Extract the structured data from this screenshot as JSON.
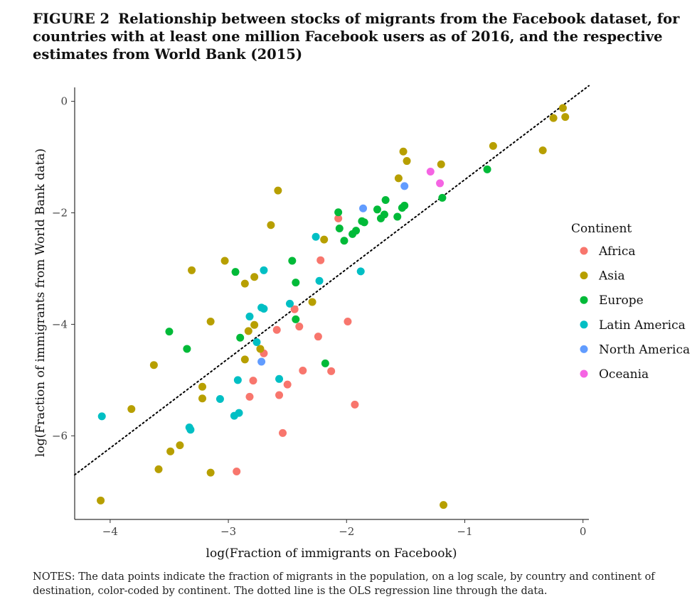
{
  "figure": {
    "label": "FIGURE 2",
    "title": "Relationship between stocks of migrants from the Facebook dataset, for countries with at least one million Facebook users as of 2016, and the respective estimates from World Bank (2015)",
    "notes": "NOTES: The data points indicate the fraction of migrants in the population, on a log scale, by country and continent of destination, color-coded by continent. The dotted line is the OLS regression line through the data."
  },
  "chart_data": {
    "type": "scatter",
    "xlabel": "log(Fraction of immigrants on Facebook)",
    "ylabel": "log(Fraction of immigrants from World Bank data)",
    "xlim": [
      -4.3,
      0.05
    ],
    "ylim": [
      -7.5,
      0.25
    ],
    "xticks": [
      -4,
      -3,
      -2,
      -1,
      0
    ],
    "yticks": [
      -6,
      -4,
      -2,
      0
    ],
    "xtick_labels": [
      "−4",
      "−3",
      "−2",
      "−1",
      "0"
    ],
    "ytick_labels": [
      "−6",
      "−4",
      "−2",
      "0"
    ],
    "grid": false,
    "legend_position": "right",
    "legend_title": "Continent",
    "regression_line": {
      "style": "dotted",
      "color": "#000000",
      "x0": -4.3,
      "y0": -6.7,
      "x1": 0.05,
      "y1": 0.28
    },
    "series": [
      {
        "name": "Africa",
        "color": "#F8766D",
        "points": [
          [
            -2.07,
            -2.1
          ],
          [
            -2.22,
            -2.85
          ],
          [
            -2.44,
            -3.73
          ],
          [
            -2.4,
            -4.04
          ],
          [
            -2.59,
            -4.1
          ],
          [
            -1.99,
            -3.95
          ],
          [
            -2.24,
            -4.22
          ],
          [
            -2.7,
            -4.52
          ],
          [
            -2.37,
            -4.83
          ],
          [
            -2.13,
            -4.84
          ],
          [
            -2.79,
            -5.01
          ],
          [
            -2.5,
            -5.08
          ],
          [
            -2.57,
            -5.27
          ],
          [
            -2.82,
            -5.3
          ],
          [
            -1.93,
            -5.44
          ],
          [
            -2.54,
            -5.95
          ],
          [
            -2.93,
            -6.64
          ]
        ]
      },
      {
        "name": "Asia",
        "color": "#B79F00",
        "points": [
          [
            -0.17,
            -0.12
          ],
          [
            -0.25,
            -0.3
          ],
          [
            -0.15,
            -0.28
          ],
          [
            -0.76,
            -0.8
          ],
          [
            -1.52,
            -0.9
          ],
          [
            -1.49,
            -1.07
          ],
          [
            -1.2,
            -1.13
          ],
          [
            -0.34,
            -0.88
          ],
          [
            -1.56,
            -1.38
          ],
          [
            -2.58,
            -1.6
          ],
          [
            -2.64,
            -2.22
          ],
          [
            -2.19,
            -2.48
          ],
          [
            -3.03,
            -2.86
          ],
          [
            -2.78,
            -3.15
          ],
          [
            -2.86,
            -3.27
          ],
          [
            -3.31,
            -3.03
          ],
          [
            -2.29,
            -3.6
          ],
          [
            -3.15,
            -3.95
          ],
          [
            -2.78,
            -4.01
          ],
          [
            -2.83,
            -4.12
          ],
          [
            -2.73,
            -4.44
          ],
          [
            -2.86,
            -4.63
          ],
          [
            -3.63,
            -4.73
          ],
          [
            -3.22,
            -5.12
          ],
          [
            -3.22,
            -5.33
          ],
          [
            -3.82,
            -5.52
          ],
          [
            -3.41,
            -6.17
          ],
          [
            -3.49,
            -6.28
          ],
          [
            -3.59,
            -6.6
          ],
          [
            -3.15,
            -6.66
          ],
          [
            -4.08,
            -7.16
          ],
          [
            -1.18,
            -7.24
          ]
        ]
      },
      {
        "name": "Europe",
        "color": "#00BA38",
        "points": [
          [
            -0.81,
            -1.22
          ],
          [
            -1.19,
            -1.73
          ],
          [
            -1.67,
            -1.77
          ],
          [
            -1.51,
            -1.87
          ],
          [
            -1.53,
            -1.91
          ],
          [
            -1.74,
            -1.94
          ],
          [
            -2.07,
            -1.99
          ],
          [
            -1.68,
            -2.03
          ],
          [
            -1.71,
            -2.1
          ],
          [
            -1.57,
            -2.07
          ],
          [
            -1.87,
            -2.15
          ],
          [
            -1.85,
            -2.17
          ],
          [
            -2.06,
            -2.28
          ],
          [
            -1.92,
            -2.32
          ],
          [
            -1.95,
            -2.38
          ],
          [
            -2.02,
            -2.5
          ],
          [
            -2.46,
            -2.86
          ],
          [
            -2.94,
            -3.06
          ],
          [
            -2.43,
            -3.25
          ],
          [
            -2.43,
            -3.91
          ],
          [
            -2.9,
            -4.24
          ],
          [
            -2.18,
            -4.7
          ],
          [
            -3.5,
            -4.13
          ],
          [
            -3.35,
            -4.44
          ]
        ]
      },
      {
        "name": "Latin America",
        "color": "#00BFC4",
        "points": [
          [
            -2.26,
            -2.43
          ],
          [
            -1.88,
            -3.05
          ],
          [
            -2.7,
            -3.03
          ],
          [
            -2.23,
            -3.22
          ],
          [
            -2.48,
            -3.63
          ],
          [
            -2.72,
            -3.7
          ],
          [
            -2.7,
            -3.72
          ],
          [
            -2.82,
            -3.86
          ],
          [
            -2.76,
            -4.32
          ],
          [
            -2.57,
            -4.98
          ],
          [
            -2.92,
            -5.0
          ],
          [
            -3.07,
            -5.34
          ],
          [
            -2.91,
            -5.59
          ],
          [
            -2.95,
            -5.64
          ],
          [
            -4.07,
            -5.65
          ],
          [
            -3.33,
            -5.85
          ],
          [
            -3.32,
            -5.89
          ]
        ]
      },
      {
        "name": "North America",
        "color": "#619CFF",
        "points": [
          [
            -1.86,
            -1.92
          ],
          [
            -1.51,
            -1.52
          ],
          [
            -2.72,
            -4.67
          ]
        ]
      },
      {
        "name": "Oceania",
        "color": "#F564E3",
        "points": [
          [
            -1.29,
            -1.26
          ],
          [
            -1.21,
            -1.47
          ]
        ]
      }
    ]
  }
}
